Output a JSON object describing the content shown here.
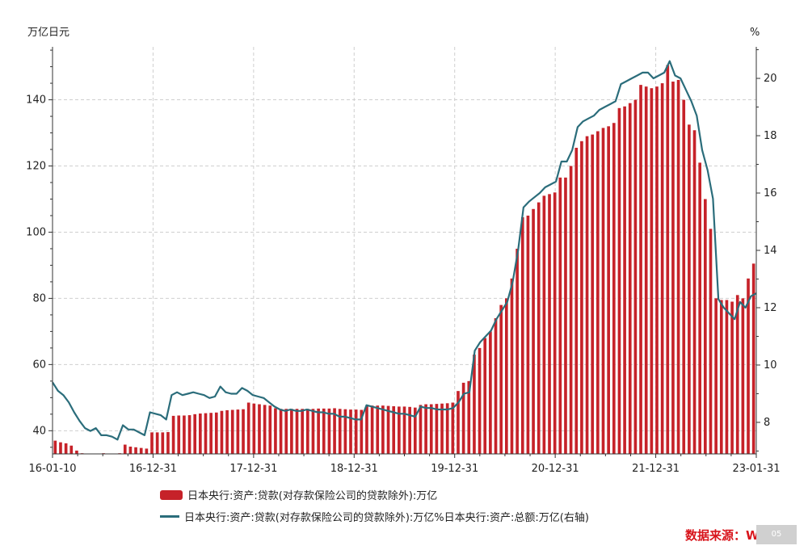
{
  "left_unit": "万亿日元",
  "right_unit": "%",
  "source": "数据来源：Wind",
  "badge": "05",
  "legend": {
    "bar_label": "日本央行:资产:贷款(对存款保险公司的贷款除外):万亿",
    "line_label": "日本央行:资产:贷款(对存款保险公司的贷款除外):万亿%日本央行:资产:总额:万亿(右轴)"
  },
  "colors": {
    "bar": "#c62229",
    "line": "#2b6d7b",
    "grid": "#cfcfcf"
  },
  "chart_data": {
    "type": "bar+line",
    "x_tick_labels": [
      "16-01-10",
      "16-12-31",
      "17-12-31",
      "18-12-31",
      "19-12-31",
      "20-12-31",
      "21-12-31",
      "23-01-31"
    ],
    "left_axis": {
      "ticks": [
        40,
        60,
        80,
        100,
        120,
        140
      ],
      "range": [
        33,
        156
      ]
    },
    "right_axis": {
      "ticks": [
        8,
        10,
        12,
        14,
        16,
        18,
        20
      ],
      "range": [
        6.9,
        21.1
      ]
    },
    "series": [
      {
        "name": "日本央行:资产:贷款(对存款保险公司的贷款除外):万亿",
        "kind": "bar",
        "axis": "left",
        "values": [
          37.0,
          36.5,
          36.2,
          35.5,
          34.0,
          33.2,
          32.8,
          32.5,
          33.0,
          33.2,
          33.0,
          33.0,
          33.2,
          35.8,
          35.2,
          35.0,
          34.8,
          34.6,
          39.5,
          39.5,
          39.5,
          39.6,
          44.5,
          44.6,
          44.6,
          44.7,
          45.0,
          45.2,
          45.3,
          45.4,
          45.5,
          46.0,
          46.2,
          46.3,
          46.4,
          46.5,
          48.5,
          48.2,
          48.0,
          47.8,
          47.6,
          46.8,
          46.6,
          46.6,
          46.6,
          46.6,
          46.6,
          46.6,
          46.6,
          46.7,
          46.7,
          46.7,
          46.8,
          46.6,
          46.5,
          46.4,
          46.4,
          46.3,
          47.5,
          47.6,
          47.6,
          47.6,
          47.5,
          47.4,
          47.3,
          47.3,
          47.2,
          47.0,
          47.8,
          48.0,
          48.0,
          48.1,
          48.2,
          48.3,
          48.5,
          52.0,
          54.5,
          55.0,
          63.0,
          65.0,
          68.0,
          70.0,
          74.0,
          78.0,
          80.0,
          86.0,
          95.0,
          104.5,
          105.0,
          107.0,
          109.0,
          111.0,
          111.5,
          112.0,
          116.5,
          116.5,
          120.0,
          125.5,
          127.5,
          129.0,
          129.5,
          130.5,
          131.5,
          132.0,
          133.0,
          137.5,
          138.0,
          139.0,
          140.0,
          144.5,
          144.0,
          143.5,
          144.0,
          145.0,
          150.5,
          145.5,
          146.0,
          140.0,
          132.5,
          130.8,
          121.0,
          110.0,
          101.0,
          80.0,
          79.5,
          79.5,
          79.0,
          81.0,
          80.0,
          86.0,
          90.5
        ]
      },
      {
        "name": "日本央行:资产:贷款(对存款保险公司的贷款除外):万亿%日本央行:资产:总额:万亿(右轴)",
        "kind": "line",
        "axis": "right",
        "values": [
          9.4,
          9.1,
          8.95,
          8.7,
          8.35,
          8.05,
          7.8,
          7.7,
          7.8,
          7.55,
          7.55,
          7.5,
          7.4,
          7.9,
          7.75,
          7.75,
          7.65,
          7.55,
          8.35,
          8.3,
          8.25,
          8.1,
          8.95,
          9.05,
          8.95,
          9.0,
          9.05,
          9.0,
          8.95,
          8.85,
          8.9,
          9.25,
          9.05,
          9.0,
          9.0,
          9.2,
          9.1,
          8.95,
          8.9,
          8.85,
          8.7,
          8.55,
          8.45,
          8.4,
          8.45,
          8.4,
          8.4,
          8.45,
          8.4,
          8.35,
          8.35,
          8.3,
          8.3,
          8.2,
          8.2,
          8.15,
          8.1,
          8.1,
          8.6,
          8.55,
          8.5,
          8.45,
          8.4,
          8.35,
          8.3,
          8.3,
          8.25,
          8.2,
          8.55,
          8.5,
          8.5,
          8.45,
          8.45,
          8.45,
          8.5,
          8.7,
          9.0,
          9.05,
          10.5,
          10.8,
          11.0,
          11.2,
          11.6,
          11.9,
          12.2,
          12.9,
          14.0,
          15.5,
          15.7,
          15.85,
          16.0,
          16.2,
          16.3,
          16.4,
          17.1,
          17.1,
          17.5,
          18.3,
          18.5,
          18.6,
          18.7,
          18.9,
          19.0,
          19.1,
          19.2,
          19.8,
          19.9,
          20.0,
          20.1,
          20.2,
          20.2,
          20.0,
          20.1,
          20.2,
          20.6,
          20.1,
          20.0,
          19.6,
          19.2,
          18.7,
          17.5,
          16.8,
          15.8,
          12.3,
          12.0,
          11.8,
          11.6,
          12.2,
          12.0,
          12.4,
          12.5
        ]
      }
    ]
  }
}
